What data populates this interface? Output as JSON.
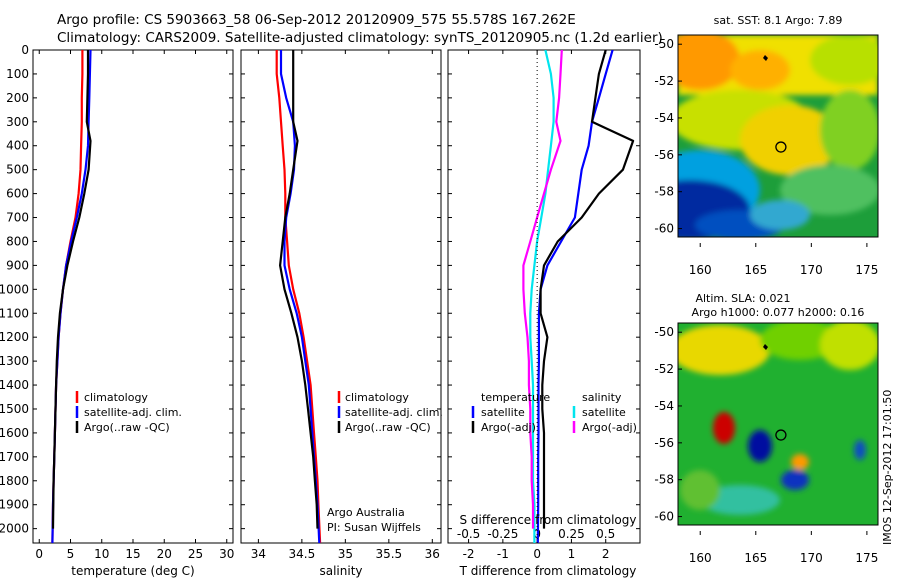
{
  "title": {
    "line1": "Argo profile: CS 5903663_58 06-Sep-2012 20120909_575 55.578S 167.262E",
    "line2": "Climatology: CARS2009. Satellite-adjusted climatology: synTS_20120905.nc (1.2d earlier)"
  },
  "colors": {
    "climatology": "#ff0000",
    "satellite": "#0000ff",
    "argo": "#000000",
    "sal_satellite": "#00e5ee",
    "sal_argo": "#ff00ff"
  },
  "chart_data": [
    {
      "type": "line",
      "id": "temperature",
      "xlabel": "temperature (deg C)",
      "ylabel": "",
      "xlim": [
        -1,
        31
      ],
      "ylim": [
        2060,
        0
      ],
      "xticks": [
        "0",
        "5",
        "10",
        "15",
        "20",
        "25",
        "30"
      ],
      "xtick_values": [
        0,
        5,
        10,
        15,
        20,
        25,
        30
      ],
      "yticks": [
        "0",
        "100",
        "200",
        "300",
        "400",
        "500",
        "600",
        "700",
        "800",
        "900",
        "1000",
        "1100",
        "1200",
        "1300",
        "1400",
        "1500",
        "1600",
        "1700",
        "1800",
        "1900",
        "2000"
      ],
      "ytick_values": [
        0,
        100,
        200,
        300,
        400,
        500,
        600,
        700,
        800,
        900,
        1000,
        1100,
        1200,
        1300,
        1400,
        1500,
        1600,
        1700,
        1800,
        1900,
        2000
      ],
      "legend": [
        "climatology",
        "satellite-adj. clim.",
        "Argo(..raw -QC)"
      ],
      "series": [
        {
          "name": "climatology",
          "color": "#ff0000",
          "x": [
            6.9,
            6.9,
            6.8,
            6.8,
            6.7,
            6.6,
            6.3,
            5.8,
            5.0,
            4.3,
            3.8,
            3.4,
            3.1,
            2.9,
            2.7,
            2.6,
            2.5,
            2.4,
            2.3,
            2.2,
            2.1
          ],
          "y": [
            0,
            100,
            200,
            300,
            400,
            500,
            600,
            700,
            800,
            900,
            1000,
            1100,
            1200,
            1300,
            1400,
            1500,
            1600,
            1700,
            1800,
            1900,
            2060
          ]
        },
        {
          "name": "satellite-adj. clim.",
          "color": "#0000ff",
          "x": [
            8.2,
            8.1,
            8.0,
            7.9,
            7.8,
            7.4,
            6.8,
            6.0,
            5.1,
            4.3,
            3.8,
            3.4,
            3.1,
            2.9,
            2.7,
            2.6,
            2.5,
            2.4,
            2.3,
            2.2,
            2.1
          ],
          "y": [
            0,
            100,
            200,
            300,
            400,
            500,
            600,
            700,
            800,
            900,
            1000,
            1100,
            1200,
            1300,
            1400,
            1500,
            1600,
            1700,
            1800,
            1900,
            2060
          ]
        },
        {
          "name": "Argo(..raw -QC)",
          "color": "#000000",
          "x": [
            7.8,
            7.8,
            7.7,
            7.6,
            8.2,
            7.9,
            7.2,
            6.4,
            5.4,
            4.5,
            3.8,
            3.3,
            3.0,
            2.8,
            2.7,
            2.6,
            2.5,
            2.4,
            2.3,
            2.25,
            2.2
          ],
          "y": [
            0,
            100,
            200,
            300,
            380,
            500,
            600,
            700,
            800,
            900,
            1000,
            1100,
            1200,
            1300,
            1400,
            1500,
            1600,
            1700,
            1800,
            1900,
            2000
          ]
        }
      ]
    },
    {
      "type": "line",
      "id": "salinity",
      "xlabel": "salinity",
      "xlim": [
        33.8,
        36.1
      ],
      "ylim": [
        2060,
        0
      ],
      "xticks": [
        "34",
        "34.5",
        "35",
        "35.5",
        "36"
      ],
      "xtick_values": [
        34,
        34.5,
        35,
        35.5,
        36
      ],
      "legend": [
        "climatology",
        "satellite-adj. clim.",
        "Argo(..raw -QC)"
      ],
      "annotation": [
        "Argo Australia",
        "PI: Susan Wijffels"
      ],
      "series": [
        {
          "name": "climatology",
          "color": "#ff0000",
          "x": [
            34.21,
            34.21,
            34.24,
            34.26,
            34.28,
            34.3,
            34.31,
            34.31,
            34.33,
            34.35,
            34.4,
            34.47,
            34.52,
            34.56,
            34.6,
            34.62,
            34.64,
            34.66,
            34.68,
            34.69,
            34.71
          ],
          "y": [
            0,
            100,
            200,
            300,
            400,
            500,
            600,
            700,
            800,
            900,
            1000,
            1100,
            1200,
            1300,
            1400,
            1500,
            1600,
            1700,
            1800,
            1900,
            2060
          ]
        },
        {
          "name": "satellite-adj. clim.",
          "color": "#0000ff",
          "x": [
            34.26,
            34.26,
            34.32,
            34.4,
            34.42,
            34.41,
            34.37,
            34.32,
            34.3,
            34.3,
            34.36,
            34.44,
            34.5,
            34.54,
            34.58,
            34.6,
            34.62,
            34.64,
            34.66,
            34.68,
            34.7
          ],
          "y": [
            0,
            100,
            200,
            300,
            400,
            500,
            600,
            700,
            800,
            900,
            1000,
            1100,
            1200,
            1300,
            1400,
            1500,
            1600,
            1700,
            1800,
            1900,
            2060
          ]
        },
        {
          "name": "Argo(..raw -QC)",
          "color": "#000000",
          "x": [
            34.4,
            34.4,
            34.4,
            34.4,
            34.45,
            34.4,
            34.36,
            34.31,
            34.28,
            34.25,
            34.3,
            34.38,
            34.45,
            34.5,
            34.54,
            34.57,
            34.6,
            34.63,
            34.65,
            34.67,
            34.68
          ],
          "y": [
            0,
            100,
            200,
            300,
            380,
            500,
            600,
            700,
            800,
            900,
            1000,
            1100,
            1200,
            1300,
            1400,
            1500,
            1600,
            1700,
            1800,
            1900,
            2000
          ]
        }
      ]
    },
    {
      "type": "line",
      "id": "difference",
      "xlabel": "T difference from climatology",
      "x2label": "S difference from climatology",
      "xlim": [
        -2.6,
        3.0
      ],
      "x2lim": [
        -0.65,
        0.75
      ],
      "ylim": [
        2060,
        0
      ],
      "xticks": [
        "-2",
        "-1",
        "0",
        "1",
        "2"
      ],
      "xtick_values": [
        -2,
        -1,
        0,
        1,
        2
      ],
      "x2ticks": [
        "-0.5",
        "-0.25",
        "0",
        "0.25",
        "0.5"
      ],
      "x2tick_values": [
        -0.5,
        -0.25,
        0,
        0.25,
        0.5
      ],
      "legend_temperature": [
        "temperature",
        "satellite",
        "Argo(-adj)"
      ],
      "legend_salinity": [
        "salinity",
        "satellite",
        "Argo(-adj)"
      ],
      "series": [
        {
          "name": "temperature satellite",
          "color": "#0000ff",
          "axis": "T",
          "x": [
            2.2,
            2.0,
            1.8,
            1.6,
            1.5,
            1.3,
            1.2,
            1.1,
            0.7,
            0.3,
            0.1,
            0.05,
            0.05,
            0.05,
            0.04,
            0.04,
            0.04,
            0.03,
            0.03,
            0.03,
            0.02
          ],
          "y": [
            0,
            100,
            200,
            300,
            400,
            500,
            600,
            700,
            800,
            900,
            1000,
            1100,
            1200,
            1300,
            1400,
            1500,
            1600,
            1700,
            1800,
            1900,
            2060
          ]
        },
        {
          "name": "temperature Argo(-adj)",
          "color": "#000000",
          "axis": "T",
          "x": [
            2.0,
            1.8,
            1.7,
            1.6,
            2.8,
            2.5,
            1.8,
            1.3,
            0.6,
            0.2,
            0.1,
            0.1,
            0.3,
            0.2,
            0.15,
            0.15,
            0.2,
            0.2,
            0.2,
            0.2,
            0.2
          ],
          "y": [
            0,
            100,
            200,
            300,
            380,
            500,
            600,
            700,
            800,
            900,
            1000,
            1100,
            1200,
            1300,
            1400,
            1500,
            1600,
            1700,
            1800,
            1900,
            2000
          ]
        },
        {
          "name": "salinity satellite",
          "color": "#00e5ee",
          "axis": "S",
          "x": [
            0.06,
            0.1,
            0.12,
            0.12,
            0.1,
            0.08,
            0.06,
            0.03,
            0.0,
            -0.02,
            -0.04,
            -0.05,
            -0.05,
            -0.04,
            -0.03,
            -0.03,
            -0.03,
            -0.03,
            -0.03,
            -0.02,
            -0.02
          ],
          "y": [
            0,
            100,
            200,
            300,
            400,
            500,
            600,
            700,
            800,
            900,
            1000,
            1100,
            1200,
            1300,
            1400,
            1500,
            1600,
            1700,
            1800,
            1900,
            2060
          ]
        },
        {
          "name": "salinity Argo(-adj)",
          "color": "#ff00ff",
          "axis": "S",
          "x": [
            0.18,
            0.17,
            0.16,
            0.14,
            0.17,
            0.1,
            0.05,
            0.0,
            -0.05,
            -0.1,
            -0.1,
            -0.09,
            -0.07,
            -0.06,
            -0.06,
            -0.05,
            -0.05,
            -0.04,
            -0.04,
            -0.03,
            -0.03
          ],
          "y": [
            0,
            100,
            200,
            300,
            380,
            500,
            600,
            700,
            800,
            900,
            1000,
            1100,
            1200,
            1300,
            1400,
            1500,
            1600,
            1700,
            1800,
            1900,
            2000
          ]
        }
      ]
    },
    {
      "type": "heatmap",
      "id": "sst_map",
      "title": "sat. SST: 8.1  Argo: 7.89",
      "xlim": [
        158,
        176
      ],
      "ylim": [
        -61,
        -49.5
      ],
      "xticks": [
        "160",
        "165",
        "170",
        "175"
      ],
      "xtick_values": [
        160,
        165,
        170,
        175
      ],
      "yticks": [
        "-50",
        "-52",
        "-54",
        "-56",
        "-58",
        "-60"
      ],
      "ytick_values": [
        -50,
        -52,
        -54,
        -56,
        -58,
        -60
      ],
      "marker": {
        "lon": 167.262,
        "lat": -55.578
      }
    },
    {
      "type": "heatmap",
      "id": "sla_map",
      "title": "Altim. SLA: 0.021",
      "subtitle": "Argo h1000: 0.077 h2000: 0.16",
      "xlim": [
        158,
        176
      ],
      "ylim": [
        -61,
        -49.5
      ],
      "xticks": [
        "160",
        "165",
        "170",
        "175"
      ],
      "xtick_values": [
        160,
        165,
        170,
        175
      ],
      "yticks": [
        "-50",
        "-52",
        "-54",
        "-56",
        "-58",
        "-60"
      ],
      "ytick_values": [
        -50,
        -52,
        -54,
        -56,
        -58,
        -60
      ],
      "marker": {
        "lon": 167.262,
        "lat": -55.578
      }
    }
  ],
  "watermark": "IMOS 12-Sep-2012 17:01:50"
}
